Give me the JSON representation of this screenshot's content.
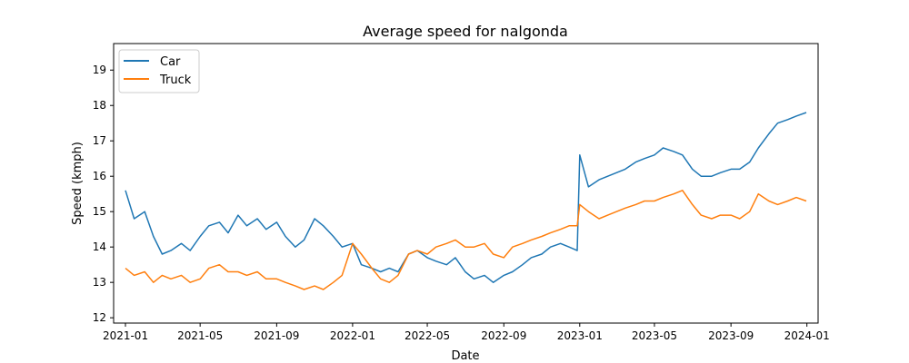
{
  "chart_data": {
    "type": "line",
    "title": "Average speed for nalgonda",
    "xlabel": "Date",
    "ylabel": "Speed (kmph)",
    "x_ticks": [
      "2021-01",
      "2021-05",
      "2021-09",
      "2022-01",
      "2022-05",
      "2022-09",
      "2023-01",
      "2023-05",
      "2023-09",
      "2024-01"
    ],
    "y_ticks": [
      "12",
      "13",
      "14",
      "15",
      "16",
      "17",
      "18",
      "19"
    ],
    "xlim": [
      "2020-12-13",
      "2024-01-19"
    ],
    "ylim": [
      11.85,
      19.75
    ],
    "grid": false,
    "legend_position": "top-left",
    "x": [
      "2021-01-01",
      "2021-01-15",
      "2021-02-01",
      "2021-02-15",
      "2021-03-01",
      "2021-03-15",
      "2021-04-01",
      "2021-04-15",
      "2021-05-01",
      "2021-05-15",
      "2021-06-01",
      "2021-06-15",
      "2021-07-01",
      "2021-07-15",
      "2021-08-01",
      "2021-08-15",
      "2021-09-01",
      "2021-09-15",
      "2021-10-01",
      "2021-10-15",
      "2021-11-01",
      "2021-11-15",
      "2021-12-01",
      "2021-12-15",
      "2022-01-01",
      "2022-01-15",
      "2022-02-01",
      "2022-02-15",
      "2022-03-01",
      "2022-03-15",
      "2022-04-01",
      "2022-04-15",
      "2022-05-01",
      "2022-05-15",
      "2022-06-01",
      "2022-06-15",
      "2022-07-01",
      "2022-07-15",
      "2022-08-01",
      "2022-08-15",
      "2022-09-01",
      "2022-09-15",
      "2022-10-01",
      "2022-10-15",
      "2022-11-01",
      "2022-11-15",
      "2022-12-01",
      "2022-12-15",
      "2022-12-28",
      "2023-01-01",
      "2023-01-15",
      "2023-02-01",
      "2023-02-15",
      "2023-03-01",
      "2023-03-15",
      "2023-04-01",
      "2023-04-15",
      "2023-05-01",
      "2023-05-15",
      "2023-06-01",
      "2023-06-15",
      "2023-07-01",
      "2023-07-15",
      "2023-08-01",
      "2023-08-15",
      "2023-09-01",
      "2023-09-15",
      "2023-10-01",
      "2023-10-15",
      "2023-11-01",
      "2023-11-15",
      "2023-12-01",
      "2023-12-15",
      "2023-12-31"
    ],
    "series": [
      {
        "name": "Car",
        "color": "#1f77b4",
        "values": [
          15.6,
          14.8,
          15.0,
          14.3,
          13.8,
          13.9,
          14.1,
          13.9,
          14.3,
          14.6,
          14.7,
          14.4,
          14.9,
          14.6,
          14.8,
          14.5,
          14.7,
          14.3,
          14.0,
          14.2,
          14.8,
          14.6,
          14.3,
          14.0,
          14.1,
          13.5,
          13.4,
          13.3,
          13.4,
          13.3,
          13.8,
          13.9,
          13.7,
          13.6,
          13.5,
          13.7,
          13.3,
          13.1,
          13.2,
          13.0,
          13.2,
          13.3,
          13.5,
          13.7,
          13.8,
          14.0,
          14.1,
          14.0,
          13.9,
          16.6,
          15.7,
          15.9,
          16.0,
          16.1,
          16.2,
          16.4,
          16.5,
          16.6,
          16.8,
          16.7,
          16.6,
          16.2,
          16.0,
          16.0,
          16.1,
          16.2,
          16.2,
          16.4,
          16.8,
          17.2,
          17.5,
          17.6,
          17.7,
          17.8
        ]
      },
      {
        "name": "Truck",
        "color": "#ff7f0e",
        "values": [
          13.4,
          13.2,
          13.3,
          13.0,
          13.2,
          13.1,
          13.2,
          13.0,
          13.1,
          13.4,
          13.5,
          13.3,
          13.3,
          13.2,
          13.3,
          13.1,
          13.1,
          13.0,
          12.9,
          12.8,
          12.9,
          12.8,
          13.0,
          13.2,
          14.1,
          13.8,
          13.4,
          13.1,
          13.0,
          13.2,
          13.8,
          13.9,
          13.8,
          14.0,
          14.1,
          14.2,
          14.0,
          14.0,
          14.1,
          13.8,
          13.7,
          14.0,
          14.1,
          14.2,
          14.3,
          14.4,
          14.5,
          14.6,
          14.6,
          15.2,
          15.0,
          14.8,
          14.9,
          15.0,
          15.1,
          15.2,
          15.3,
          15.3,
          15.4,
          15.5,
          15.6,
          15.2,
          14.9,
          14.8,
          14.9,
          14.9,
          14.8,
          15.0,
          15.5,
          15.3,
          15.2,
          15.3,
          15.4,
          15.3
        ]
      }
    ]
  }
}
